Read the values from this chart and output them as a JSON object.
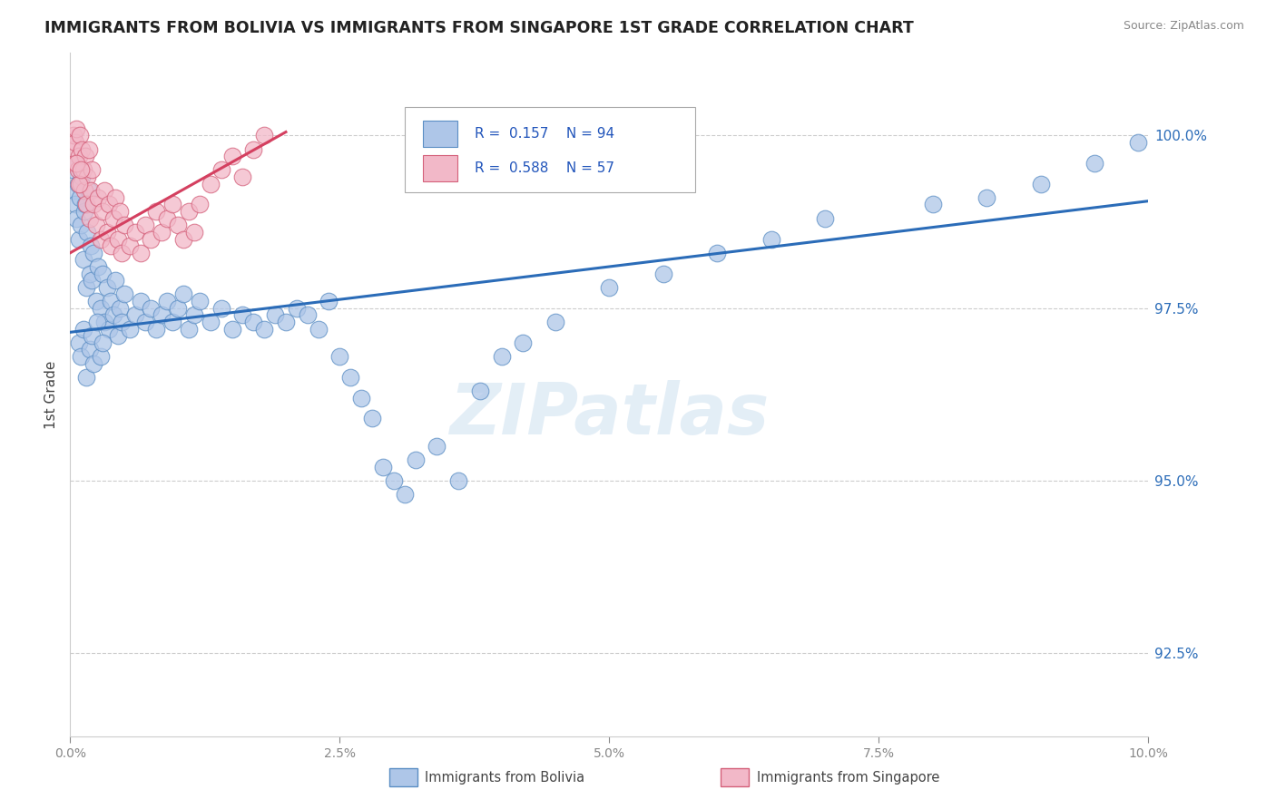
{
  "title": "IMMIGRANTS FROM BOLIVIA VS IMMIGRANTS FROM SINGAPORE 1ST GRADE CORRELATION CHART",
  "source": "Source: ZipAtlas.com",
  "ylabel": "1st Grade",
  "yticks": [
    92.5,
    95.0,
    97.5,
    100.0
  ],
  "xlim": [
    0.0,
    10.0
  ],
  "ylim": [
    91.3,
    101.2
  ],
  "bolivia_R": 0.157,
  "bolivia_N": 94,
  "singapore_R": 0.588,
  "singapore_N": 57,
  "bolivia_color": "#aec6e8",
  "bolivia_edge": "#5b8ec4",
  "singapore_color": "#f2b8c8",
  "singapore_edge": "#d4607a",
  "bolivia_line_color": "#2b6cb8",
  "singapore_line_color": "#d44060",
  "watermark": "ZIPatlas",
  "bolivia_line_x0": 0.0,
  "bolivia_line_y0": 97.15,
  "bolivia_line_x1": 10.0,
  "bolivia_line_y1": 99.05,
  "singapore_line_x0": 0.0,
  "singapore_line_y0": 98.3,
  "singapore_line_x1": 2.0,
  "singapore_line_y1": 100.05,
  "bolivia_x": [
    0.02,
    0.03,
    0.04,
    0.05,
    0.06,
    0.07,
    0.08,
    0.09,
    0.1,
    0.11,
    0.12,
    0.13,
    0.14,
    0.15,
    0.16,
    0.17,
    0.18,
    0.19,
    0.2,
    0.22,
    0.24,
    0.26,
    0.28,
    0.3,
    0.32,
    0.34,
    0.36,
    0.38,
    0.4,
    0.42,
    0.44,
    0.46,
    0.48,
    0.5,
    0.55,
    0.6,
    0.65,
    0.7,
    0.75,
    0.8,
    0.85,
    0.9,
    0.95,
    1.0,
    1.05,
    1.1,
    1.15,
    1.2,
    1.3,
    1.4,
    1.5,
    1.6,
    1.7,
    1.8,
    1.9,
    2.0,
    2.1,
    2.2,
    2.3,
    2.4,
    2.5,
    2.6,
    2.7,
    2.8,
    2.9,
    3.0,
    3.1,
    3.2,
    3.4,
    3.6,
    3.8,
    4.0,
    4.2,
    4.5,
    5.0,
    5.5,
    6.0,
    6.5,
    7.0,
    8.0,
    8.5,
    9.0,
    9.5,
    9.9,
    0.08,
    0.1,
    0.12,
    0.15,
    0.18,
    0.2,
    0.22,
    0.25,
    0.28,
    0.3
  ],
  "bolivia_y": [
    99.5,
    99.2,
    99.6,
    99.0,
    98.8,
    99.3,
    98.5,
    99.1,
    98.7,
    99.4,
    98.2,
    98.9,
    99.0,
    97.8,
    98.6,
    99.2,
    98.0,
    98.4,
    97.9,
    98.3,
    97.6,
    98.1,
    97.5,
    98.0,
    97.3,
    97.8,
    97.2,
    97.6,
    97.4,
    97.9,
    97.1,
    97.5,
    97.3,
    97.7,
    97.2,
    97.4,
    97.6,
    97.3,
    97.5,
    97.2,
    97.4,
    97.6,
    97.3,
    97.5,
    97.7,
    97.2,
    97.4,
    97.6,
    97.3,
    97.5,
    97.2,
    97.4,
    97.3,
    97.2,
    97.4,
    97.3,
    97.5,
    97.4,
    97.2,
    97.6,
    96.8,
    96.5,
    96.2,
    95.9,
    95.2,
    95.0,
    94.8,
    95.3,
    95.5,
    95.0,
    96.3,
    96.8,
    97.0,
    97.3,
    97.8,
    98.0,
    98.3,
    98.5,
    98.8,
    99.0,
    99.1,
    99.3,
    99.6,
    99.9,
    97.0,
    96.8,
    97.2,
    96.5,
    96.9,
    97.1,
    96.7,
    97.3,
    96.8,
    97.0
  ],
  "singapore_x": [
    0.02,
    0.03,
    0.04,
    0.05,
    0.06,
    0.07,
    0.08,
    0.09,
    0.1,
    0.11,
    0.12,
    0.13,
    0.14,
    0.15,
    0.16,
    0.17,
    0.18,
    0.19,
    0.2,
    0.22,
    0.24,
    0.26,
    0.28,
    0.3,
    0.32,
    0.34,
    0.36,
    0.38,
    0.4,
    0.42,
    0.44,
    0.46,
    0.48,
    0.5,
    0.55,
    0.6,
    0.65,
    0.7,
    0.75,
    0.8,
    0.85,
    0.9,
    0.95,
    1.0,
    1.05,
    1.1,
    1.15,
    1.2,
    1.3,
    1.4,
    1.5,
    1.6,
    1.7,
    1.8,
    0.06,
    0.08,
    0.1
  ],
  "singapore_y": [
    99.8,
    100.0,
    99.6,
    99.9,
    100.1,
    99.5,
    99.7,
    100.0,
    99.3,
    99.8,
    99.5,
    99.2,
    99.7,
    99.0,
    99.4,
    99.8,
    98.8,
    99.2,
    99.5,
    99.0,
    98.7,
    99.1,
    98.5,
    98.9,
    99.2,
    98.6,
    99.0,
    98.4,
    98.8,
    99.1,
    98.5,
    98.9,
    98.3,
    98.7,
    98.4,
    98.6,
    98.3,
    98.7,
    98.5,
    98.9,
    98.6,
    98.8,
    99.0,
    98.7,
    98.5,
    98.9,
    98.6,
    99.0,
    99.3,
    99.5,
    99.7,
    99.4,
    99.8,
    100.0,
    99.6,
    99.3,
    99.5
  ]
}
